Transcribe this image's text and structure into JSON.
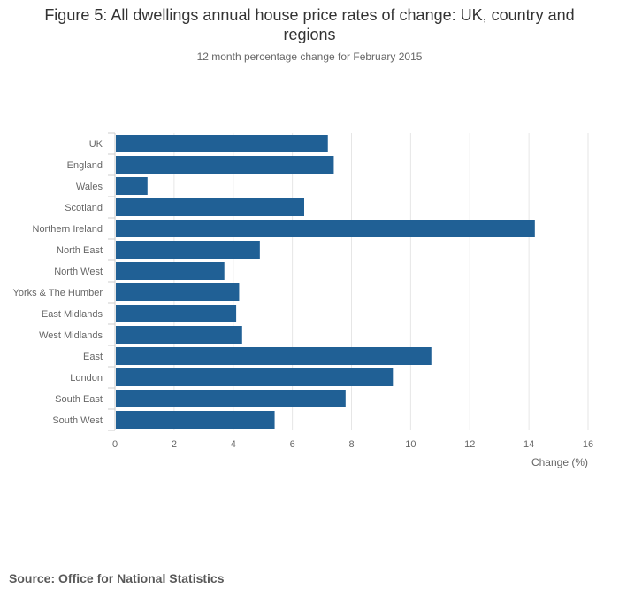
{
  "chart_data": {
    "type": "bar",
    "orientation": "horizontal",
    "title": "Figure 5: All dwellings annual house price rates of change: UK, country and regions",
    "subtitle": "12 month percentage change for February 2015",
    "categories": [
      "UK",
      "England",
      "Wales",
      "Scotland",
      "Northern Ireland",
      "North East",
      "North West",
      "Yorks & The Humber",
      "East Midlands",
      "West Midlands",
      "East",
      "London",
      "South East",
      "South West"
    ],
    "values": [
      7.2,
      7.4,
      1.1,
      6.4,
      14.2,
      4.9,
      3.7,
      4.2,
      4.1,
      4.3,
      10.7,
      9.4,
      7.8,
      5.4
    ],
    "xlabel": "Change (%)",
    "ylabel": "",
    "xlim": [
      0,
      16
    ],
    "xticks": [
      0,
      2,
      4,
      6,
      8,
      10,
      12,
      14,
      16
    ],
    "grid": true,
    "bar_color": "#206095",
    "source": "Source: Office for National Statistics"
  }
}
